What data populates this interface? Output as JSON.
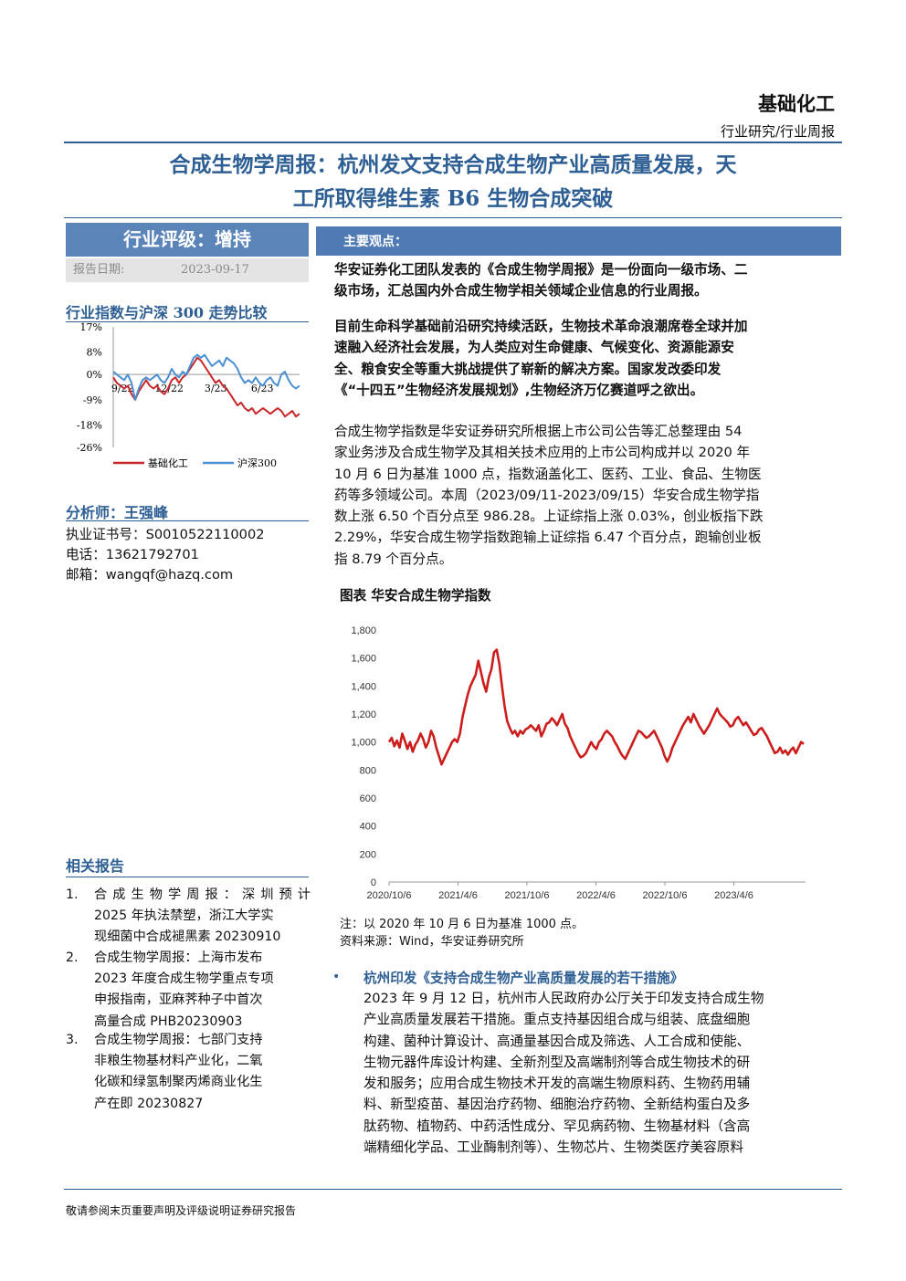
{
  "header": {
    "industry": "基础化工",
    "report_type": "行业研究/行业周报"
  },
  "title": {
    "line1": "合成生物学周报：杭州发文支持合成生物产业高质量发展，天",
    "line2": "工所取得维生素 B6 生物合成突破"
  },
  "sidebar": {
    "rating_label": "行业评级：增持",
    "date_label": "报告日期:",
    "date_value": "2023-09-17",
    "mini_chart_title": "行业指数与沪深 300 走势比较",
    "analyst_heading": "分析师：王强峰",
    "cert": "执业证书号：S0010522110002",
    "phone": "电话：13621792701",
    "email": "邮箱：wangqf@hazq.com",
    "related_heading": "相关报告",
    "related": [
      {
        "num": "1.",
        "lines": [
          "合成生物学周报：深圳预计",
          "2025 年执法禁塑，浙江大学实",
          "现细菌中合成褪黑素 20230910"
        ]
      },
      {
        "num": "2.",
        "lines": [
          "合成生物学周报：上海市发布",
          "2023 年度合成生物学重点专项",
          "申报指南，亚麻荠种子中首次",
          "高量合成 PHB20230903"
        ]
      },
      {
        "num": "3.",
        "lines": [
          "合成生物学周报：七部门支持",
          "非粮生物基材料产业化，二氧",
          "化碳和绿氢制聚丙烯商业化生",
          "产在即 20230827"
        ]
      }
    ]
  },
  "main": {
    "views_heading": "主要观点：",
    "para1": [
      "华安证券化工团队发表的《合成生物学周报》是一份面向一级市场、二",
      "级市场，汇总国内外合成生物学相关领域企业信息的行业周报。"
    ],
    "para2": [
      "目前生命科学基础前沿研究持续活跃，生物技术革命浪潮席卷全球并加",
      "速融入经济社会发展，为人类应对生命健康、气候变化、资源能源安",
      "全、粮食安全等重大挑战提供了崭新的解决方案。国家发改委印发",
      "《“十四五”生物经济发展规划》,生物经济万亿赛道呼之欲出。"
    ],
    "para3": [
      "合成生物学指数是华安证券研究所根据上市公司公告等汇总整理由 54",
      "家业务涉及合成生物学及其相关技术应用的上市公司构成并以 2020 年",
      "10 月 6 日为基准 1000 点，指数涵盖化工、医药、工业、食品、生物医",
      "药等多领域公司。本周（2023/09/11-2023/09/15）华安合成生物学指",
      "数上涨 6.50 个百分点至 986.28。上证综指上涨 0.03%，创业板指下跌",
      "2.29%，华安合成生物学指数跑输上证综指 6.47 个百分点，跑输创业板",
      "指 8.79 个百分点。"
    ],
    "figure_title": "图表  华安合成生物学指数",
    "note": "注：以 2020 年 10 月 6 日为基准 1000 点。",
    "source": "资料来源：Wind，华安证券研究所",
    "bullet_heading": "杭州印发《支持合成生物产业高质量发展的若干措施》",
    "para4": [
      "2023 年 9 月 12 日，杭州市人民政府办公厅关于印发支持合成生物",
      "产业高质量发展若干措施。重点支持基因组合成与组装、底盘细胞",
      "构建、菌种计算设计、高通量基因合成及筛选、人工合成和使能、",
      "生物元器件库设计构建、全新剂型及高端制剂等合成生物技术的研",
      "发和服务；应用合成生物技术开发的高端生物原料药、生物药用辅",
      "料、新型疫苗、基因治疗药物、细胞治疗药物、全新结构蛋白及多",
      "肽药物、植物药、中药活性成分、罕见病药物、生物基材料（含高",
      "端精细化学品、工业酶制剂等）、生物芯片、生物类医疗美容原料"
    ]
  },
  "footer": "敬请参阅末页重要声明及评级说明证券研究报告",
  "colors": {
    "brand_blue": "#2e5f94",
    "series_red": "#c8272b",
    "series_blue": "#4a8fd4",
    "index_red": "#cc1d1d"
  },
  "chart_data": [
    {
      "type": "line",
      "title": "行业指数与沪深 300 走势比较",
      "x_tick_labels": [
        "9/22",
        "12/22",
        "3/23",
        "6/23"
      ],
      "y_tick_labels": [
        "17%",
        "8%",
        "0%",
        "-9%",
        "-18%",
        "-26%"
      ],
      "ylim": [
        -26,
        17
      ],
      "legend_position": "bottom",
      "series": [
        {
          "name": "基础化工",
          "color": "#c8272b",
          "values": [
            -1,
            -3,
            -4,
            -5,
            -4,
            -7,
            -9,
            -6,
            -4,
            -2,
            -4,
            -5,
            -4,
            -6,
            -7,
            -5,
            -2,
            -1,
            -3,
            -1,
            0,
            2,
            4,
            6,
            5,
            3,
            1,
            -1,
            -3,
            -2,
            -4,
            -5,
            -7,
            -9,
            -11,
            -10,
            -12,
            -13,
            -12,
            -14,
            -13,
            -12,
            -13,
            -14,
            -13,
            -12,
            -13,
            -15,
            -14,
            -13,
            -15,
            -14
          ]
        },
        {
          "name": "沪深300",
          "color": "#4a8fd4",
          "values": [
            1,
            0,
            -1,
            -2,
            0,
            -3,
            -9,
            -5,
            -2,
            -1,
            -2,
            -1,
            0,
            -2,
            -3,
            -1,
            2,
            0,
            -1,
            1,
            0,
            3,
            6,
            7,
            6,
            7,
            5,
            3,
            4,
            5,
            3,
            6,
            5,
            4,
            2,
            -1,
            -3,
            -2,
            -3,
            -1,
            -3,
            -4,
            -2,
            -1,
            -3,
            -4,
            0,
            1,
            -2,
            -4,
            -5,
            -4
          ]
        }
      ]
    },
    {
      "type": "line",
      "title": "图表  华安合成生物学指数",
      "x_tick_labels": [
        "2020/10/6",
        "2021/4/6",
        "2021/10/6",
        "2022/4/6",
        "2022/10/6",
        "2023/4/6"
      ],
      "y_tick_labels": [
        "1,800",
        "1,600",
        "1,400",
        "1,200",
        "1,000",
        "800",
        "600",
        "400",
        "200",
        "0"
      ],
      "ylim": [
        0,
        1800
      ],
      "series": [
        {
          "name": "华安合成生物学指数",
          "color": "#cc1d1d",
          "values": [
            1000,
            1030,
            970,
            1010,
            960,
            1060,
            1010,
            950,
            1000,
            930,
            980,
            1010,
            1060,
            1020,
            960,
            1000,
            1080,
            1040,
            960,
            900,
            840,
            880,
            920,
            960,
            1000,
            1020,
            1000,
            1060,
            1180,
            1260,
            1340,
            1400,
            1440,
            1480,
            1580,
            1500,
            1420,
            1360,
            1460,
            1520,
            1640,
            1660,
            1560,
            1400,
            1260,
            1150,
            1100,
            1060,
            1080,
            1040,
            1080,
            1060,
            1090,
            1100,
            1120,
            1100,
            1080,
            1120,
            1040,
            1080,
            1130,
            1140,
            1170,
            1150,
            1120,
            1160,
            1200,
            1130,
            1100,
            1040,
            1000,
            960,
            920,
            890,
            900,
            920,
            960,
            1000,
            970,
            950,
            1000,
            1020,
            1060,
            1080,
            1060,
            1040,
            1000,
            970,
            930,
            900,
            880,
            920,
            960,
            1000,
            1040,
            1080,
            1070,
            1050,
            1030,
            1040,
            1060,
            1080,
            1040,
            1000,
            960,
            900,
            860,
            900,
            960,
            1000,
            1040,
            1080,
            1120,
            1150,
            1180,
            1140,
            1200,
            1160,
            1120,
            1090,
            1060,
            1090,
            1120,
            1160,
            1200,
            1240,
            1200,
            1180,
            1160,
            1140,
            1110,
            1120,
            1160,
            1180,
            1150,
            1120,
            1140,
            1110,
            1080,
            1050,
            1060,
            1090,
            1100,
            1070,
            1040,
            1000,
            960,
            920,
            930,
            960,
            920,
            940,
            910,
            940,
            960,
            920,
            960,
            1000,
            986
          ]
        }
      ]
    }
  ]
}
